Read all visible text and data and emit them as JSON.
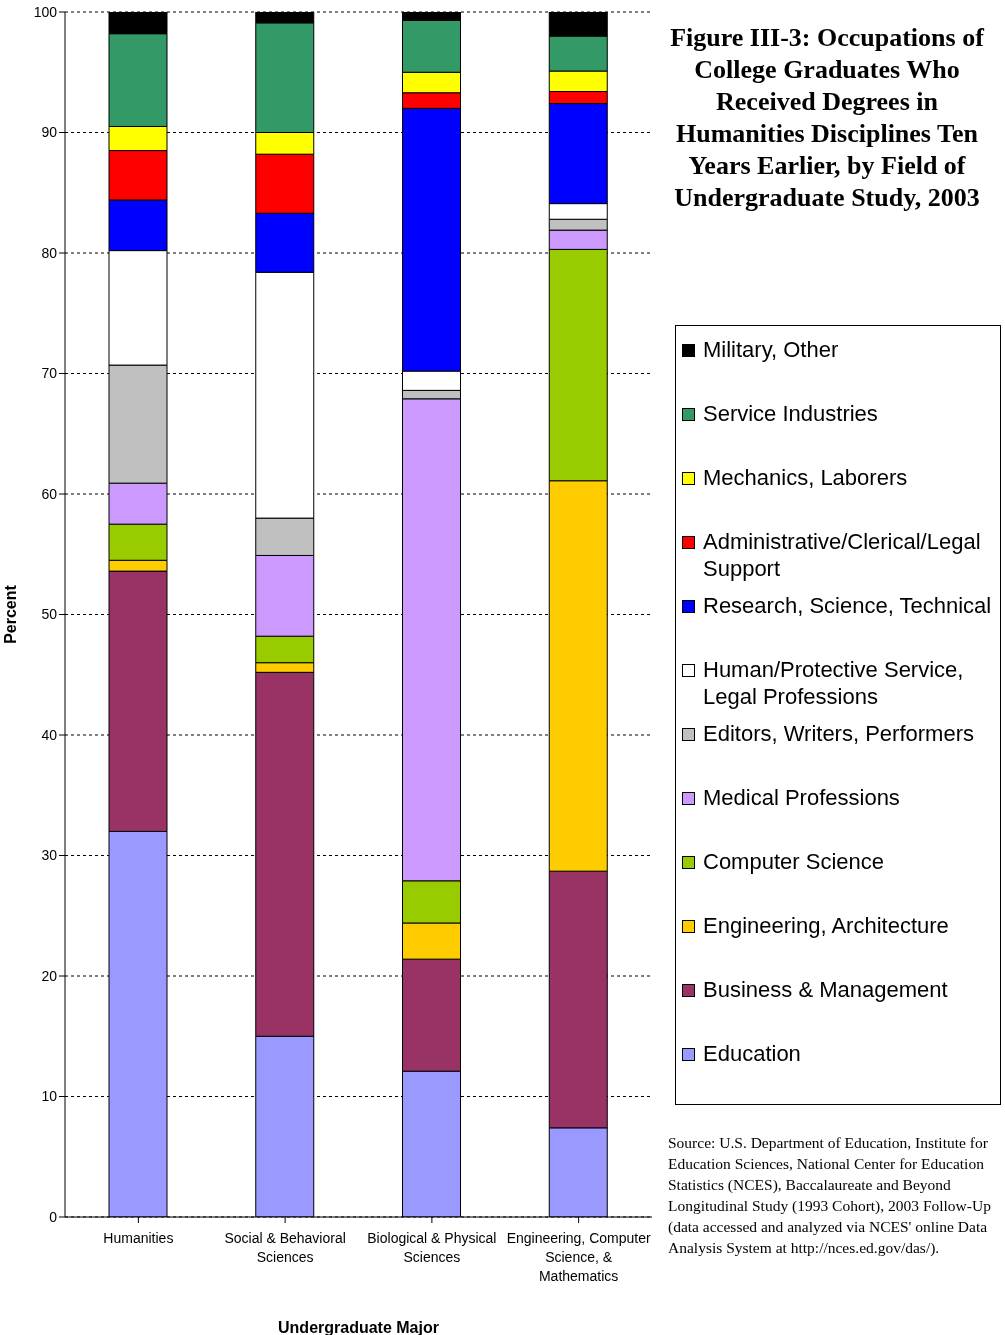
{
  "chart_data": {
    "type": "bar",
    "stacked": true,
    "title": "Figure III-3: Occupations of College Graduates Who Received Degrees in Humanities Disciplines Ten Years Earlier, by Field of Undergraduate Study, 2003",
    "xlabel": "Undergraduate  Major",
    "ylabel": "Percent",
    "categories": [
      "Humanities",
      "Social & Behavioral Sciences",
      "Biological & Physical Sciences",
      "Engineering, Computer Science, & Mathematics"
    ],
    "series": [
      {
        "name": "Education",
        "color": "#9999ff",
        "values": [
          32.0,
          15.0,
          12.1,
          7.4
        ]
      },
      {
        "name": "Business & Management",
        "color": "#993366",
        "values": [
          21.6,
          30.2,
          9.3,
          21.3
        ]
      },
      {
        "name": "Engineering, Architecture",
        "color": "#ffcc00",
        "values": [
          0.9,
          0.8,
          3.0,
          32.4
        ]
      },
      {
        "name": "Computer Science",
        "color": "#99cc00",
        "values": [
          3.0,
          2.2,
          3.5,
          19.2
        ]
      },
      {
        "name": "Medical Professions",
        "color": "#cc99ff",
        "values": [
          3.4,
          6.7,
          40.0,
          1.6
        ]
      },
      {
        "name": "Editors, Writers, Performers",
        "color": "#c0c0c0",
        "values": [
          9.8,
          3.1,
          0.7,
          0.9
        ]
      },
      {
        "name": "Human/Protective Service, Legal Professions",
        "color": "#ffffff",
        "values": [
          9.5,
          20.4,
          1.6,
          1.3
        ]
      },
      {
        "name": "Research, Science, Technical",
        "color": "#0000ff",
        "values": [
          4.2,
          4.9,
          21.8,
          8.3
        ]
      },
      {
        "name": "Administrative/Clerical/Legal Support",
        "color": "#ff0000",
        "values": [
          4.1,
          4.9,
          1.3,
          1.0
        ]
      },
      {
        "name": "Mechanics, Laborers",
        "color": "#ffff00",
        "values": [
          2.0,
          1.8,
          1.7,
          1.7
        ]
      },
      {
        "name": "Service Industries",
        "color": "#339966",
        "values": [
          7.7,
          9.1,
          4.3,
          2.9
        ]
      },
      {
        "name": "Military, Other",
        "color": "#000000",
        "values": [
          1.8,
          0.9,
          0.7,
          2.0
        ]
      }
    ],
    "ylim": [
      0,
      100
    ],
    "yticks": [
      0,
      10,
      20,
      30,
      40,
      50,
      60,
      70,
      80,
      90,
      100
    ],
    "grid": "y",
    "legend": "right",
    "annotations": [
      "Source: U.S. Department of Education, Institute for Education Sciences, National Center for Education Statistics (NCES), Baccalaureate and Beyond Longitudinal Study (1993 Cohort), 2003 Follow-Up (data accessed and analyzed via NCES' online Data Analysis System at http://nces.ed.gov/das/)."
    ]
  }
}
